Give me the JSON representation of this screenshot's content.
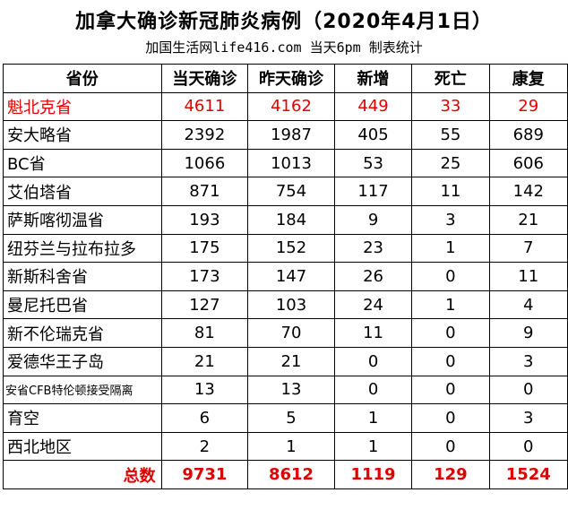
{
  "title": "加拿大确诊新冠肺炎病例（2020年4月1日）",
  "subtitle": "加国生活网life416.com 当天6pm 制表统计",
  "headers": [
    "省份",
    "当天确诊",
    "昨天确诊",
    "新增",
    "死亡",
    "康复"
  ],
  "rows": [
    {
      "province": "魁北克省",
      "today": "4611",
      "yesterday": "4162",
      "new": "449",
      "deaths": "33",
      "recovered": "29"
    },
    {
      "province": "安大略省",
      "today": "2392",
      "yesterday": "1987",
      "new": "405",
      "deaths": "55",
      "recovered": "689"
    },
    {
      "province": "BC省",
      "today": "1066",
      "yesterday": "1013",
      "new": "53",
      "deaths": "25",
      "recovered": "606"
    },
    {
      "province": "艾伯塔省",
      "today": "871",
      "yesterday": "754",
      "new": "117",
      "deaths": "11",
      "recovered": "142"
    },
    {
      "province": "萨斯喀彻温省",
      "today": "193",
      "yesterday": "184",
      "new": "9",
      "deaths": "3",
      "recovered": "21"
    },
    {
      "province": "纽芬兰与拉布拉多",
      "today": "175",
      "yesterday": "152",
      "new": "23",
      "deaths": "1",
      "recovered": "7"
    },
    {
      "province": "新斯科舍省",
      "today": "173",
      "yesterday": "147",
      "new": "26",
      "deaths": "0",
      "recovered": "11"
    },
    {
      "province": "曼尼托巴省",
      "today": "127",
      "yesterday": "103",
      "new": "24",
      "deaths": "1",
      "recovered": "4"
    },
    {
      "province": "新不伦瑞克省",
      "today": "81",
      "yesterday": "70",
      "new": "11",
      "deaths": "0",
      "recovered": "9"
    },
    {
      "province": "爱德华王子岛",
      "today": "21",
      "yesterday": "21",
      "new": "0",
      "deaths": "0",
      "recovered": "3"
    },
    {
      "province": "安省CFB特伦顿接受隔离",
      "today": "13",
      "yesterday": "13",
      "new": "0",
      "deaths": "0",
      "recovered": "0"
    },
    {
      "province": "育空",
      "today": "6",
      "yesterday": "5",
      "new": "1",
      "deaths": "0",
      "recovered": "3"
    },
    {
      "province": "西北地区",
      "today": "2",
      "yesterday": "1",
      "new": "1",
      "deaths": "0",
      "recovered": "0"
    }
  ],
  "total": {
    "label": "总数",
    "today": "9731",
    "yesterday": "8612",
    "new": "1119",
    "deaths": "129",
    "recovered": "1524"
  },
  "colors": {
    "highlight": "#e00000",
    "text": "#000000",
    "border": "#000000"
  }
}
